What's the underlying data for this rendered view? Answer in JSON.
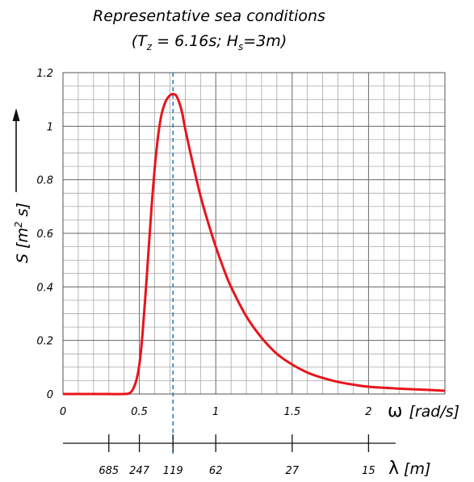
{
  "chart_data": {
    "type": "line",
    "title": "Representative sea conditions",
    "subtitle": {
      "open": "(T",
      "tz_sub": "z",
      "tz_value": " = 6.16s; H",
      "hs_sub": "s",
      "hs_value": "=3m)"
    },
    "xlabel": {
      "symbol": "ω",
      "unit": "[rad/s]"
    },
    "ylabel": {
      "text": "S [m",
      "sup": "2",
      "tail": " s]"
    },
    "xlim": [
      0,
      2.5
    ],
    "ylim": [
      0,
      1.2
    ],
    "x_ticks": [
      {
        "value": 0,
        "label": "0"
      },
      {
        "value": 0.5,
        "label": "0.5"
      },
      {
        "value": 1,
        "label": "1"
      },
      {
        "value": 1.5,
        "label": "1.5"
      },
      {
        "value": 2,
        "label": "2"
      }
    ],
    "y_ticks": [
      {
        "value": 0,
        "label": "0"
      },
      {
        "value": 0.2,
        "label": "0.2"
      },
      {
        "value": 0.4,
        "label": "0.4"
      },
      {
        "value": 0.6,
        "label": "0.6"
      },
      {
        "value": 0.8,
        "label": "0.8"
      },
      {
        "value": 1,
        "label": "1"
      },
      {
        "value": 1.2,
        "label": "1.2"
      }
    ],
    "grid": true,
    "series": [
      {
        "color": "#e8141c",
        "x": [
          0,
          0.2,
          0.4,
          0.44,
          0.46,
          0.48,
          0.5,
          0.52,
          0.55,
          0.58,
          0.61,
          0.64,
          0.67,
          0.7,
          0.72,
          0.74,
          0.76,
          0.78,
          0.8,
          0.85,
          0.9,
          0.95,
          1.0,
          1.05,
          1.1,
          1.2,
          1.3,
          1.4,
          1.5,
          1.6,
          1.7,
          1.8,
          1.9,
          2.0,
          2.2,
          2.4,
          2.5
        ],
        "y": [
          0,
          0,
          0,
          0.005,
          0.02,
          0.05,
          0.11,
          0.22,
          0.45,
          0.7,
          0.9,
          1.03,
          1.09,
          1.115,
          1.12,
          1.115,
          1.09,
          1.05,
          0.99,
          0.86,
          0.74,
          0.64,
          0.55,
          0.47,
          0.4,
          0.29,
          0.21,
          0.15,
          0.11,
          0.08,
          0.06,
          0.045,
          0.035,
          0.027,
          0.02,
          0.015,
          0.012
        ]
      }
    ],
    "peak_marker": {
      "x": 0.72,
      "color": "#2a7fc0"
    },
    "wavelength_axis": {
      "label_symbol": "λ",
      "label_unit": "[m]",
      "ticks": [
        {
          "omega": 0.3,
          "label": "685"
        },
        {
          "omega": 0.5,
          "label": "247"
        },
        {
          "omega": 0.72,
          "label": "119"
        },
        {
          "omega": 1.0,
          "label": "62"
        },
        {
          "omega": 1.5,
          "label": "27"
        },
        {
          "omega": 2.0,
          "label": "15"
        }
      ]
    }
  }
}
